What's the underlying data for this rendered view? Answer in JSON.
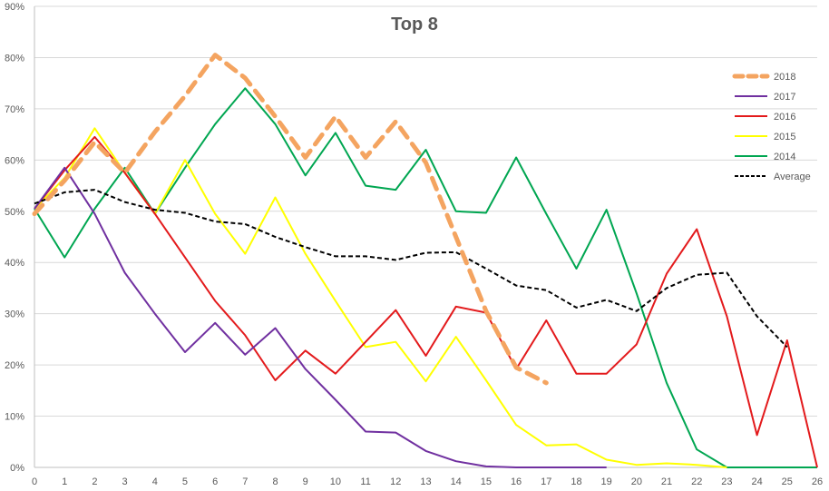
{
  "chart_data": {
    "type": "line",
    "title": "Top 8",
    "xlabel": "",
    "ylabel": "",
    "x": [
      0,
      1,
      2,
      3,
      4,
      5,
      6,
      7,
      8,
      9,
      10,
      11,
      12,
      13,
      14,
      15,
      16,
      17,
      18,
      19,
      20,
      21,
      22,
      23,
      24,
      25,
      26
    ],
    "x_tick_labels": [
      "0",
      "1",
      "2",
      "3",
      "4",
      "5",
      "6",
      "7",
      "8",
      "9",
      "10",
      "11",
      "12",
      "13",
      "14",
      "15",
      "16",
      "17",
      "18",
      "19",
      "20",
      "21",
      "22",
      "23",
      "24",
      "25",
      "26"
    ],
    "y_tick_labels": [
      "0%",
      "10%",
      "20%",
      "30%",
      "40%",
      "50%",
      "60%",
      "70%",
      "80%",
      "90%"
    ],
    "ylim": [
      0,
      90
    ],
    "xlim": [
      0,
      26
    ],
    "grid": "horizontal",
    "legend_position": "right",
    "series": [
      {
        "name": "2018",
        "color": "#F4A460",
        "dash": "dashed-thick",
        "x": [
          0,
          1,
          2,
          3,
          4,
          5,
          6,
          7,
          8,
          9,
          10,
          11,
          12,
          13,
          14,
          15,
          16,
          17
        ],
        "values": [
          49.5,
          56,
          63.5,
          57.5,
          65.5,
          72.5,
          80.5,
          76,
          68.5,
          60.5,
          68.5,
          60.5,
          67.5,
          59.5,
          45,
          30.5,
          19.5,
          16.5
        ]
      },
      {
        "name": "2017",
        "color": "#7030A0",
        "dash": "solid",
        "x": [
          0,
          1,
          2,
          3,
          4,
          5,
          6,
          7,
          8,
          9,
          10,
          11,
          12,
          13,
          14,
          15,
          16,
          17,
          18,
          19
        ],
        "values": [
          50.5,
          58.5,
          49.5,
          38,
          30,
          22.5,
          28.2,
          22,
          27.2,
          19.2,
          13.2,
          7,
          6.8,
          3.2,
          1.2,
          0.2,
          0,
          0,
          0,
          0
        ]
      },
      {
        "name": "2016",
        "color": "#E31A1C",
        "dash": "solid",
        "x": [
          0,
          1,
          2,
          3,
          4,
          5,
          6,
          7,
          8,
          9,
          10,
          11,
          12,
          13,
          14,
          15,
          16,
          17,
          18,
          19,
          20,
          21,
          22,
          23,
          24,
          25,
          26
        ],
        "values": [
          50.5,
          58,
          64.5,
          57.5,
          49.5,
          41,
          32.5,
          25.8,
          17,
          22.8,
          18.3,
          24.5,
          30.7,
          21.8,
          31.4,
          30.2,
          19.2,
          28.7,
          18.3,
          18.3,
          24,
          37.8,
          46.5,
          29.5,
          6.3,
          24.8,
          0
        ]
      },
      {
        "name": "2015",
        "color": "#FFFF00",
        "dash": "solid",
        "x": [
          0,
          1,
          2,
          3,
          4,
          5,
          6,
          7,
          8,
          9,
          10,
          11,
          12,
          13,
          14,
          15,
          16,
          17,
          18,
          19,
          20,
          21,
          22,
          23
        ],
        "values": [
          50.5,
          56.5,
          66.2,
          57.5,
          49.5,
          60,
          49.5,
          41.7,
          52.7,
          41.7,
          32.5,
          23.5,
          24.5,
          16.8,
          25.5,
          17,
          8.3,
          4.3,
          4.5,
          1.5,
          0.5,
          0.8,
          0.5,
          0
        ]
      },
      {
        "name": "2014",
        "color": "#00A651",
        "dash": "solid",
        "x": [
          0,
          1,
          2,
          3,
          4,
          5,
          6,
          7,
          8,
          9,
          10,
          11,
          12,
          13,
          14,
          15,
          16,
          17,
          18,
          19,
          20,
          21,
          22,
          23,
          24,
          25,
          26
        ],
        "values": [
          50.5,
          41,
          50.5,
          58.5,
          49.5,
          58.5,
          67,
          74,
          67,
          57,
          65.3,
          55,
          54.2,
          62,
          50,
          49.7,
          60.5,
          49.5,
          38.8,
          50.3,
          34,
          16.5,
          3.5,
          0,
          0,
          0,
          0
        ]
      },
      {
        "name": "Average",
        "color": "#000000",
        "dash": "dashed-thin",
        "x": [
          0,
          1,
          2,
          3,
          4,
          5,
          6,
          7,
          8,
          9,
          10,
          11,
          12,
          13,
          14,
          15,
          16,
          17,
          18,
          19,
          20,
          21,
          22,
          23,
          24,
          25
        ],
        "values": [
          51.5,
          53.7,
          54.2,
          51.8,
          50.3,
          49.7,
          48,
          47.5,
          45,
          43,
          41.2,
          41.2,
          40.5,
          41.9,
          42,
          38.8,
          35.5,
          34.6,
          31.2,
          32.7,
          30.5,
          35,
          37.6,
          38,
          29.5,
          23.5
        ]
      }
    ]
  }
}
